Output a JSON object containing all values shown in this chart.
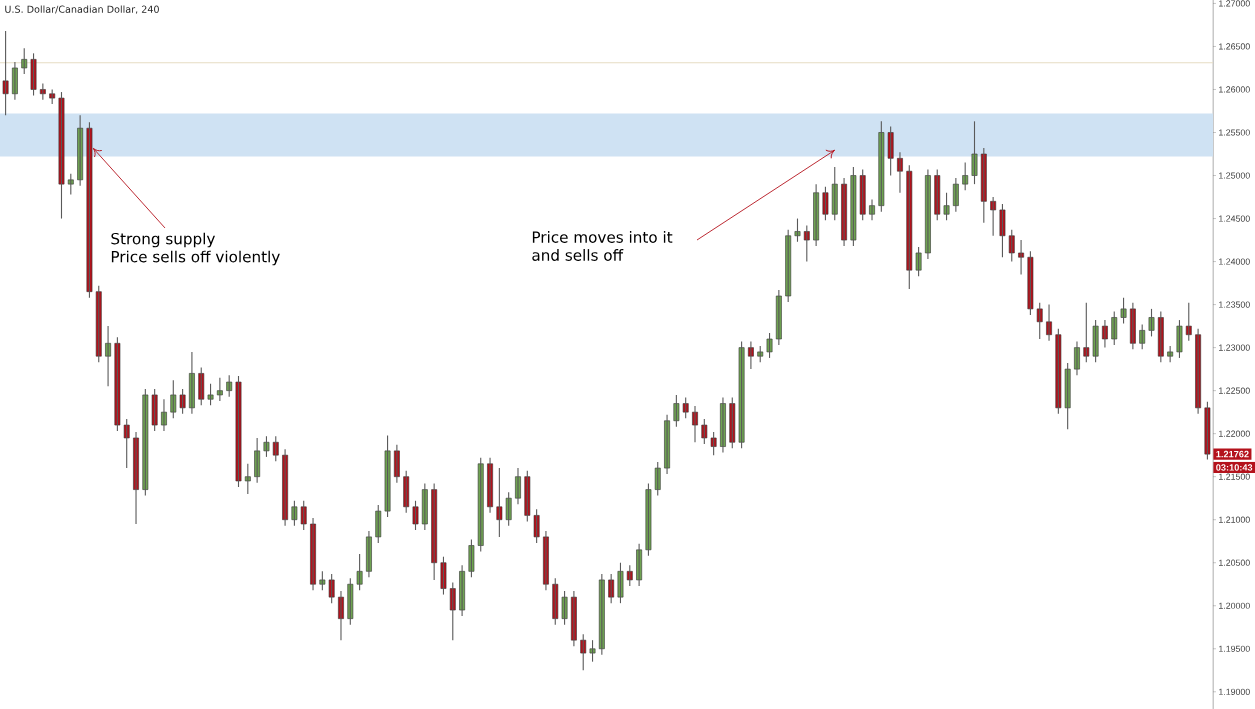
{
  "chart_data": {
    "type": "candlestick",
    "title": "U.S. Dollar/Canadian Dollar, 240",
    "categories": [
      null,
      null,
      null,
      null,
      null,
      null,
      null,
      null,
      null,
      null,
      null,
      null,
      null,
      null,
      null,
      null,
      null,
      null,
      null,
      null,
      null,
      null,
      null,
      null,
      null,
      null,
      null,
      null,
      null,
      null,
      null,
      null,
      null,
      null,
      null,
      null,
      null,
      null,
      null,
      null,
      null,
      null,
      null,
      null,
      null,
      null,
      null,
      null,
      null,
      null,
      null,
      null,
      null,
      null,
      null,
      null,
      null,
      null,
      null,
      null,
      null,
      null,
      null,
      null,
      null,
      null,
      null,
      null,
      null,
      null,
      null,
      null,
      null,
      null,
      null,
      null,
      null,
      null,
      null,
      null,
      null,
      null,
      null,
      null,
      null,
      null,
      null,
      null,
      null,
      null,
      null,
      null,
      null,
      null,
      null,
      null,
      null,
      null,
      null,
      null,
      null,
      null,
      null,
      null,
      null,
      null,
      null,
      null,
      null,
      null,
      null,
      null,
      null,
      null,
      null,
      null,
      null,
      null,
      null,
      null,
      null,
      null,
      null,
      null,
      null,
      null,
      null,
      null,
      null,
      null
    ],
    "ohlc": [
      [
        1.261,
        1.2668,
        1.257,
        1.2595
      ],
      [
        1.2595,
        1.2632,
        1.2588,
        1.2625
      ],
      [
        1.2625,
        1.2648,
        1.2618,
        1.2635
      ],
      [
        1.2635,
        1.2642,
        1.2593,
        1.26
      ],
      [
        1.26,
        1.2607,
        1.2588,
        1.2595
      ],
      [
        1.2595,
        1.26,
        1.2583,
        1.259
      ],
      [
        1.259,
        1.2597,
        1.245,
        1.249
      ],
      [
        1.249,
        1.2502,
        1.2478,
        1.2495
      ],
      [
        1.2495,
        1.257,
        1.2488,
        1.2555
      ],
      [
        1.2555,
        1.2562,
        1.2358,
        1.2365
      ],
      [
        1.2365,
        1.2372,
        1.2283,
        1.229
      ],
      [
        1.229,
        1.2325,
        1.2255,
        1.2305
      ],
      [
        1.2305,
        1.2312,
        1.2203,
        1.221
      ],
      [
        1.221,
        1.2217,
        1.216,
        1.2195
      ],
      [
        1.2195,
        1.2202,
        1.2095,
        1.2135
      ],
      [
        1.2135,
        1.2252,
        1.2128,
        1.2245
      ],
      [
        1.2245,
        1.2252,
        1.2203,
        1.221
      ],
      [
        1.221,
        1.224,
        1.2203,
        1.2225
      ],
      [
        1.2225,
        1.2262,
        1.2218,
        1.2245
      ],
      [
        1.2245,
        1.2252,
        1.2223,
        1.223
      ],
      [
        1.223,
        1.2295,
        1.2223,
        1.227
      ],
      [
        1.227,
        1.2277,
        1.2233,
        1.224
      ],
      [
        1.224,
        1.2258,
        1.2233,
        1.2245
      ],
      [
        1.2245,
        1.2265,
        1.2238,
        1.225
      ],
      [
        1.225,
        1.2268,
        1.2243,
        1.226
      ],
      [
        1.226,
        1.2267,
        1.2138,
        1.2145
      ],
      [
        1.2145,
        1.2165,
        1.213,
        1.215
      ],
      [
        1.215,
        1.2195,
        1.2143,
        1.218
      ],
      [
        1.218,
        1.2197,
        1.2173,
        1.219
      ],
      [
        1.219,
        1.2197,
        1.2168,
        1.2175
      ],
      [
        1.2175,
        1.2182,
        1.2093,
        1.21
      ],
      [
        1.21,
        1.2122,
        1.2093,
        1.2115
      ],
      [
        1.2115,
        1.2122,
        1.2088,
        1.2095
      ],
      [
        1.2095,
        1.2102,
        1.2018,
        1.2025
      ],
      [
        1.2025,
        1.204,
        1.2018,
        1.203
      ],
      [
        1.203,
        1.2037,
        1.2003,
        1.201
      ],
      [
        1.201,
        1.2017,
        1.196,
        1.1985
      ],
      [
        1.1985,
        1.2032,
        1.1978,
        1.2025
      ],
      [
        1.2025,
        1.206,
        1.2018,
        1.204
      ],
      [
        1.204,
        1.2087,
        1.2033,
        1.208
      ],
      [
        1.208,
        1.2117,
        1.2073,
        1.211
      ],
      [
        1.211,
        1.2198,
        1.2103,
        1.218
      ],
      [
        1.218,
        1.2187,
        1.2143,
        1.215
      ],
      [
        1.215,
        1.2157,
        1.2108,
        1.2115
      ],
      [
        1.2115,
        1.2122,
        1.2088,
        1.2095
      ],
      [
        1.2095,
        1.2142,
        1.2088,
        1.2135
      ],
      [
        1.2135,
        1.2142,
        1.203,
        1.205
      ],
      [
        1.205,
        1.2057,
        1.2013,
        1.202
      ],
      [
        1.202,
        1.2027,
        1.196,
        1.1995
      ],
      [
        1.1995,
        1.2047,
        1.1988,
        1.204
      ],
      [
        1.204,
        1.2077,
        1.2033,
        1.207
      ],
      [
        1.207,
        1.2172,
        1.2063,
        1.2165
      ],
      [
        1.2165,
        1.2172,
        1.2108,
        1.2115
      ],
      [
        1.2115,
        1.216,
        1.208,
        1.21
      ],
      [
        1.21,
        1.2132,
        1.2093,
        1.2125
      ],
      [
        1.2125,
        1.216,
        1.2118,
        1.215
      ],
      [
        1.215,
        1.2157,
        1.2098,
        1.2105
      ],
      [
        1.2105,
        1.2112,
        1.2073,
        1.208
      ],
      [
        1.208,
        1.2087,
        1.2018,
        1.2025
      ],
      [
        1.2025,
        1.2032,
        1.1978,
        1.1985
      ],
      [
        1.1985,
        1.2017,
        1.1978,
        1.201
      ],
      [
        1.201,
        1.2017,
        1.1953,
        1.196
      ],
      [
        1.196,
        1.1967,
        1.1925,
        1.1945
      ],
      [
        1.1945,
        1.196,
        1.1935,
        1.195
      ],
      [
        1.195,
        1.2037,
        1.1943,
        1.203
      ],
      [
        1.203,
        1.2037,
        1.2003,
        1.201
      ],
      [
        1.201,
        1.205,
        1.2003,
        1.204
      ],
      [
        1.204,
        1.2047,
        1.2023,
        1.203
      ],
      [
        1.203,
        1.2072,
        1.2023,
        1.2065
      ],
      [
        1.2065,
        1.2142,
        1.2058,
        1.2135
      ],
      [
        1.2135,
        1.2167,
        1.2128,
        1.216
      ],
      [
        1.216,
        1.2222,
        1.2153,
        1.2215
      ],
      [
        1.2215,
        1.2245,
        1.2208,
        1.2235
      ],
      [
        1.2235,
        1.2242,
        1.2218,
        1.2225
      ],
      [
        1.2225,
        1.2232,
        1.219,
        1.221
      ],
      [
        1.221,
        1.2217,
        1.2188,
        1.2195
      ],
      [
        1.2195,
        1.2202,
        1.2175,
        1.2185
      ],
      [
        1.2185,
        1.2242,
        1.2178,
        1.2235
      ],
      [
        1.2235,
        1.2242,
        1.2183,
        1.219
      ],
      [
        1.219,
        1.2307,
        1.2183,
        1.23
      ],
      [
        1.23,
        1.2307,
        1.2275,
        1.229
      ],
      [
        1.229,
        1.2302,
        1.2283,
        1.2295
      ],
      [
        1.2295,
        1.2317,
        1.2288,
        1.231
      ],
      [
        1.231,
        1.2367,
        1.2303,
        1.236
      ],
      [
        1.236,
        1.2437,
        1.2353,
        1.243
      ],
      [
        1.243,
        1.245,
        1.2423,
        1.2435
      ],
      [
        1.2435,
        1.2442,
        1.24,
        1.2425
      ],
      [
        1.2425,
        1.249,
        1.2418,
        1.248
      ],
      [
        1.248,
        1.2487,
        1.2448,
        1.2455
      ],
      [
        1.2455,
        1.251,
        1.2448,
        1.249
      ],
      [
        1.249,
        1.2497,
        1.2418,
        1.2425
      ],
      [
        1.2425,
        1.251,
        1.2418,
        1.25
      ],
      [
        1.25,
        1.2507,
        1.2448,
        1.2455
      ],
      [
        1.2455,
        1.2472,
        1.2448,
        1.2465
      ],
      [
        1.2465,
        1.2563,
        1.2458,
        1.255
      ],
      [
        1.255,
        1.2557,
        1.25,
        1.252
      ],
      [
        1.252,
        1.2527,
        1.248,
        1.2505
      ],
      [
        1.2505,
        1.2512,
        1.2368,
        1.239
      ],
      [
        1.239,
        1.2417,
        1.2383,
        1.241
      ],
      [
        1.241,
        1.2507,
        1.2403,
        1.25
      ],
      [
        1.25,
        1.2507,
        1.2448,
        1.2455
      ],
      [
        1.2455,
        1.248,
        1.2448,
        1.2465
      ],
      [
        1.2465,
        1.2497,
        1.2458,
        1.249
      ],
      [
        1.249,
        1.2515,
        1.2483,
        1.25
      ],
      [
        1.25,
        1.2563,
        1.249,
        1.2525
      ],
      [
        1.2525,
        1.2532,
        1.2445,
        1.247
      ],
      [
        1.247,
        1.2475,
        1.243,
        1.246
      ],
      [
        1.246,
        1.2467,
        1.2405,
        1.243
      ],
      [
        1.243,
        1.2437,
        1.24,
        1.241
      ],
      [
        1.241,
        1.2425,
        1.2385,
        1.2405
      ],
      [
        1.2405,
        1.2412,
        1.2338,
        1.2345
      ],
      [
        1.2345,
        1.2352,
        1.231,
        1.233
      ],
      [
        1.233,
        1.235,
        1.2308,
        1.2315
      ],
      [
        1.2315,
        1.2322,
        1.2223,
        1.223
      ],
      [
        1.223,
        1.2282,
        1.2205,
        1.2275
      ],
      [
        1.2275,
        1.2307,
        1.2268,
        1.23
      ],
      [
        1.23,
        1.2352,
        1.2283,
        1.229
      ],
      [
        1.229,
        1.2332,
        1.2283,
        1.2325
      ],
      [
        1.2325,
        1.2332,
        1.23,
        1.231
      ],
      [
        1.231,
        1.2342,
        1.2303,
        1.2335
      ],
      [
        1.2335,
        1.2358,
        1.2328,
        1.2345
      ],
      [
        1.2345,
        1.2352,
        1.2298,
        1.2305
      ],
      [
        1.2305,
        1.2327,
        1.2298,
        1.232
      ],
      [
        1.232,
        1.2345,
        1.2313,
        1.2335
      ],
      [
        1.2335,
        1.2342,
        1.2283,
        1.229
      ],
      [
        1.229,
        1.2302,
        1.2283,
        1.2295
      ],
      [
        1.2295,
        1.2332,
        1.2288,
        1.2325
      ],
      [
        1.2325,
        1.2352,
        1.2308,
        1.2315
      ],
      [
        1.2315,
        1.2322,
        1.2223,
        1.223
      ],
      [
        1.223,
        1.2237,
        1.217,
        1.21762
      ]
    ],
    "ylim": [
      1.188,
      1.2704
    ],
    "yticks": [
      {
        "value": 1.19,
        "label": "1.19000"
      },
      {
        "value": 1.195,
        "label": "1.19500"
      },
      {
        "value": 1.2,
        "label": "1.20000"
      },
      {
        "value": 1.205,
        "label": "1.20500"
      },
      {
        "value": 1.21,
        "label": "1.21000"
      },
      {
        "value": 1.215,
        "label": "1.21500"
      },
      {
        "value": 1.22,
        "label": "1.22000"
      },
      {
        "value": 1.225,
        "label": "1.22500"
      },
      {
        "value": 1.23,
        "label": "1.23000"
      },
      {
        "value": 1.235,
        "label": "1.23500"
      },
      {
        "value": 1.24,
        "label": "1.24000"
      },
      {
        "value": 1.245,
        "label": "1.24500"
      },
      {
        "value": 1.25,
        "label": "1.25000"
      },
      {
        "value": 1.255,
        "label": "1.25500"
      },
      {
        "value": 1.26,
        "label": "1.26000"
      },
      {
        "value": 1.265,
        "label": "1.26500"
      },
      {
        "value": 1.27,
        "label": "1.27000"
      }
    ],
    "tick_labels": "y",
    "grid": false,
    "bands": [
      {
        "axis": "y",
        "from": 1.2522,
        "to": 1.2572,
        "color": "#cfe2f3"
      }
    ],
    "ref_lines": [
      {
        "axis": "y",
        "value": 1.2631,
        "color": "#e6dcc3"
      }
    ],
    "annotations": [
      "Strong supply",
      "Price sells off violently",
      "Price moves into it",
      "and sells off",
      "1.21762",
      "03:10:43"
    ]
  }
}
